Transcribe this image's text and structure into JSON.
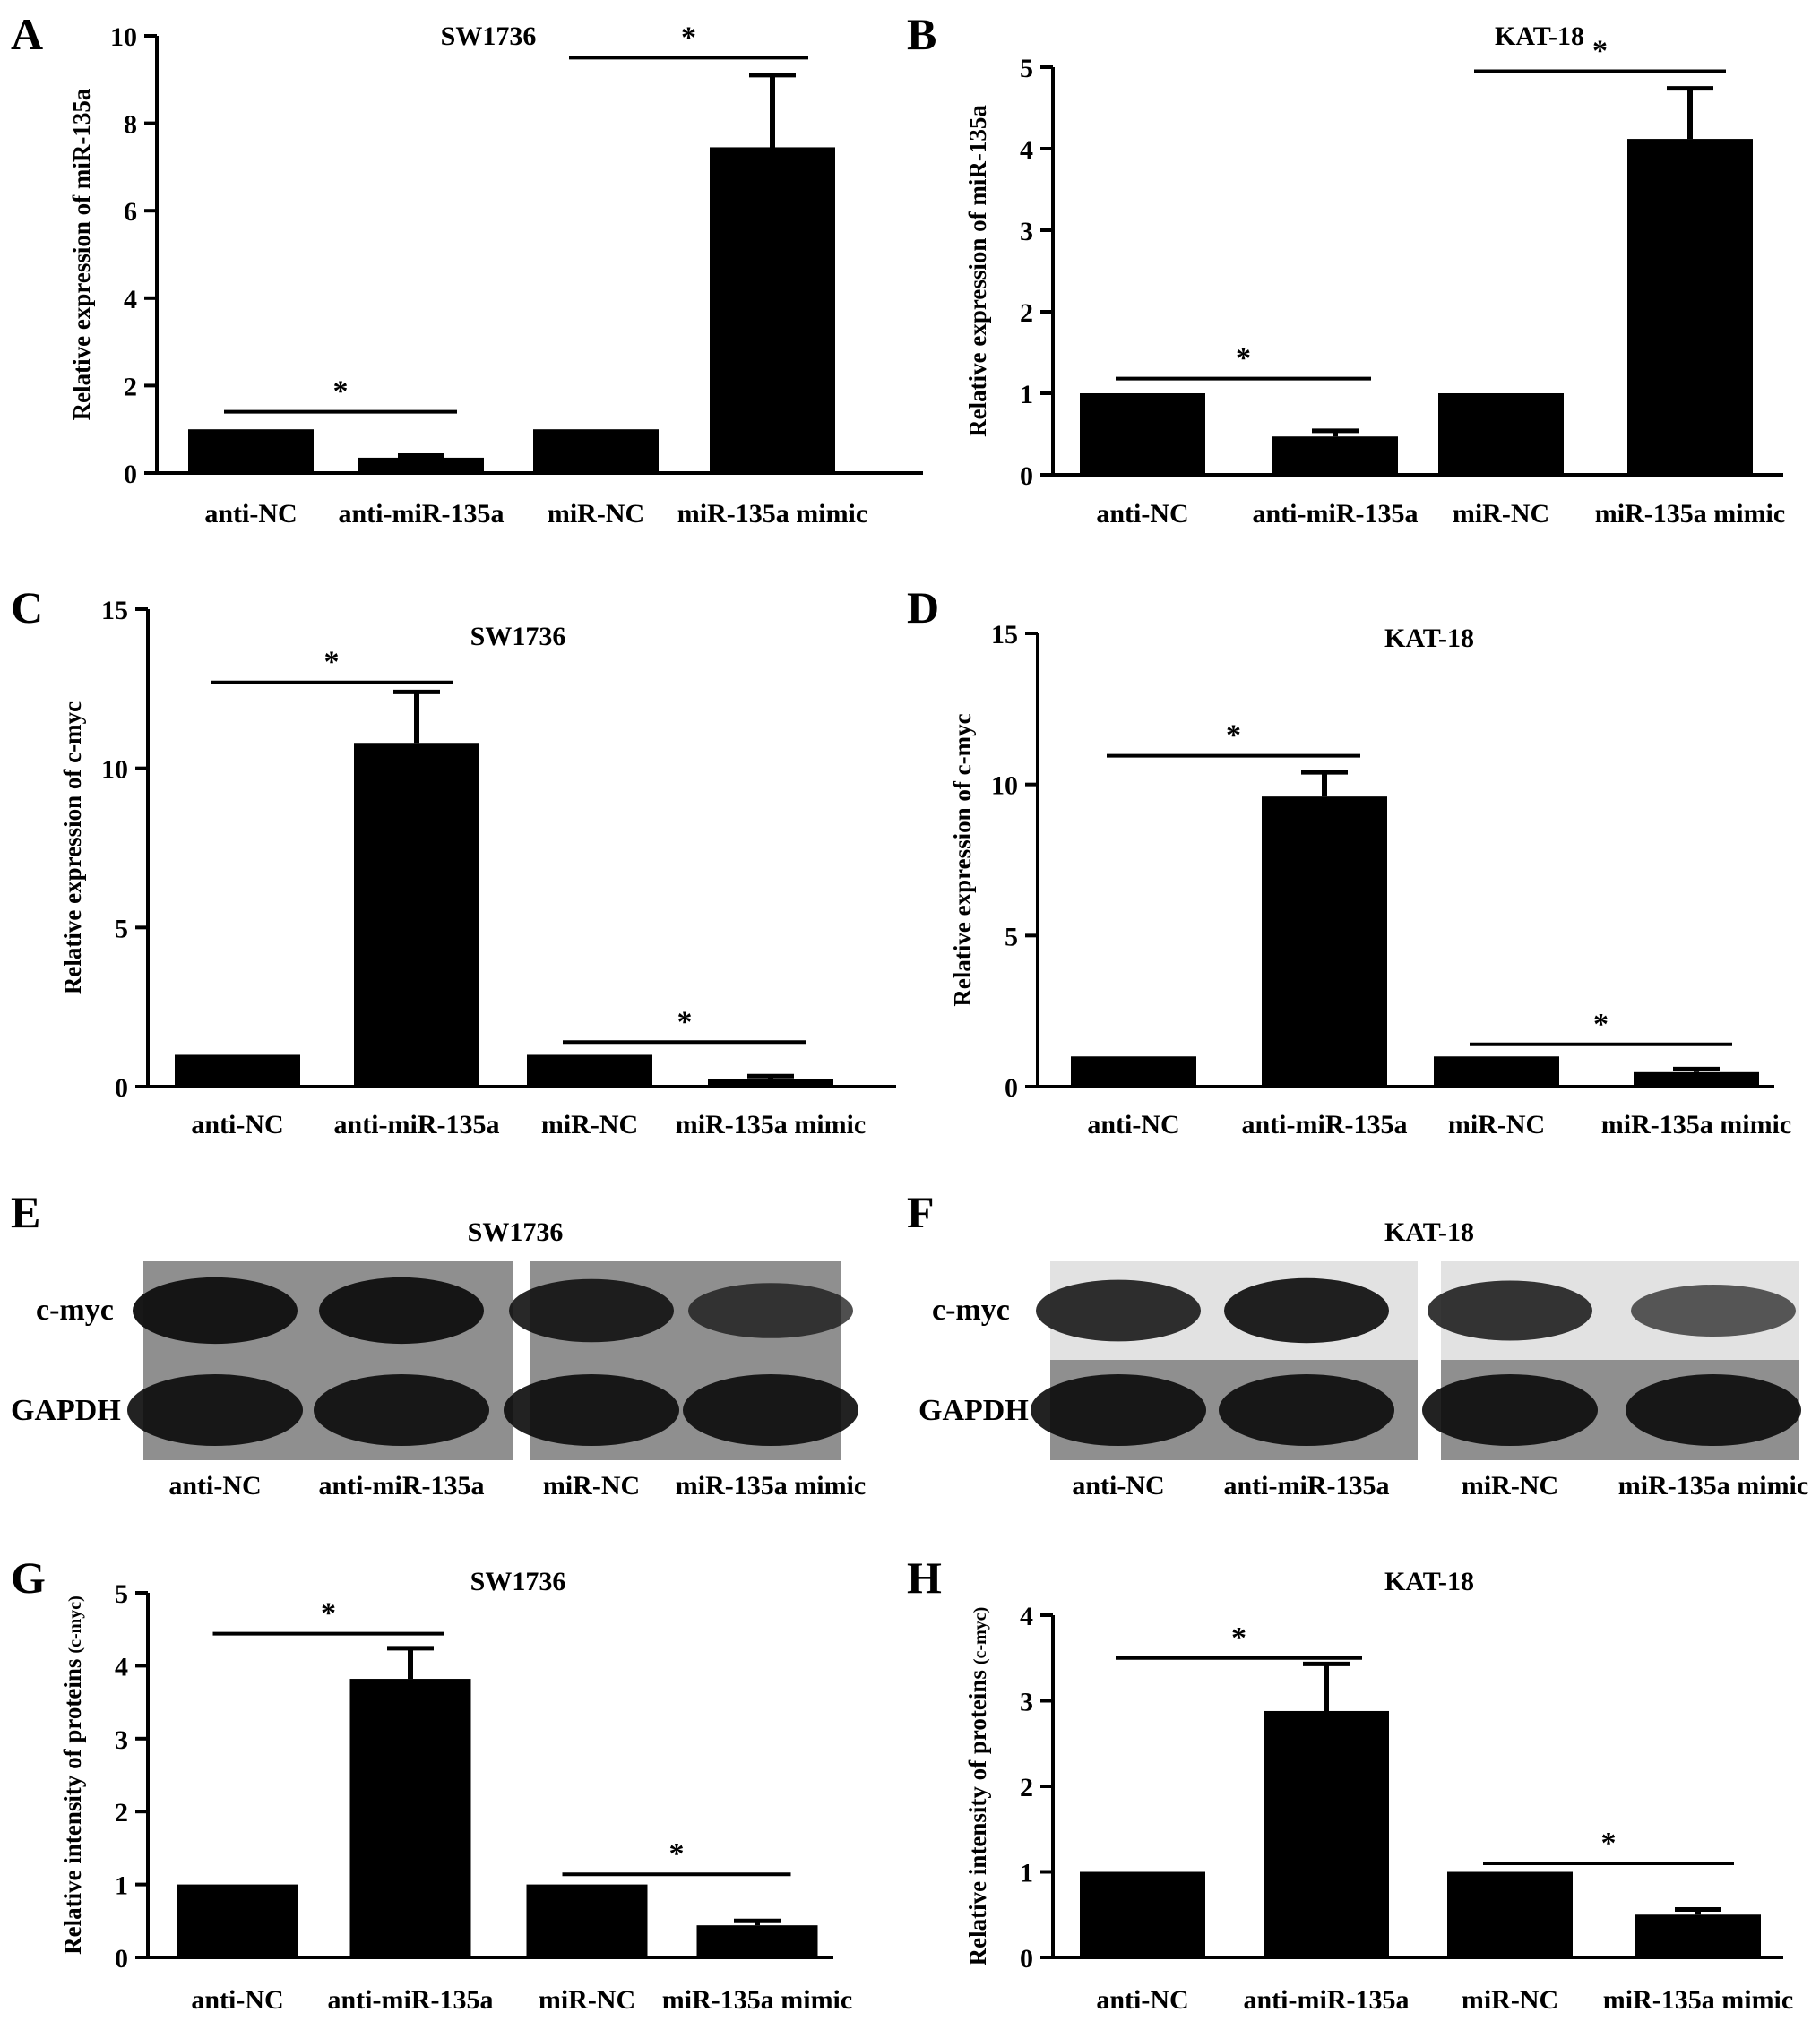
{
  "chart_data": [
    {
      "panel": "A",
      "type": "bar",
      "title": "SW1736",
      "ylabel": "Relative  expression of miR-135a",
      "xlabel": "",
      "categories": [
        "anti-NC",
        "anti-miR-135a",
        "miR-NC",
        "miR-135a mimic"
      ],
      "values": [
        1.0,
        0.35,
        1.0,
        7.45
      ],
      "errors": [
        0,
        0.05,
        0,
        1.65
      ],
      "ylim": [
        0,
        10
      ],
      "yticks": [
        "0",
        "2",
        "4",
        "6",
        "8",
        "10"
      ],
      "significance": [
        {
          "from": 0,
          "to": 1,
          "y": 1.4,
          "label": "*"
        },
        {
          "from": 2,
          "to": 3,
          "y": 9.5,
          "label": "*"
        }
      ]
    },
    {
      "panel": "B",
      "type": "bar",
      "title": "KAT-18",
      "ylabel": "Relative  expression of miR-135a",
      "xlabel": "",
      "categories": [
        "anti-NC",
        "anti-miR-135a",
        "miR-NC",
        "miR-135a mimic"
      ],
      "values": [
        1.0,
        0.47,
        1.0,
        4.12
      ],
      "errors": [
        0,
        0.07,
        0,
        0.62
      ],
      "ylim": [
        0,
        5
      ],
      "yticks": [
        "0",
        "1",
        "2",
        "3",
        "4",
        "5"
      ],
      "significance": [
        {
          "from": 0,
          "to": 1,
          "y": 1.18,
          "label": "*"
        },
        {
          "from": 2,
          "to": 3,
          "y": 4.95,
          "label": "*"
        }
      ]
    },
    {
      "panel": "C",
      "type": "bar",
      "title": "SW1736",
      "ylabel": "Relative  expression of c-myc",
      "xlabel": "",
      "categories": [
        "anti-NC",
        "anti-miR-135a",
        "miR-NC",
        "miR-135a mimic"
      ],
      "values": [
        1.0,
        10.8,
        1.0,
        0.25
      ],
      "errors": [
        0,
        1.6,
        0,
        0.08
      ],
      "ylim": [
        0,
        15
      ],
      "yticks": [
        "0",
        "5",
        "10",
        "15"
      ],
      "significance": [
        {
          "from": 0,
          "to": 1,
          "y": 12.7,
          "label": "*"
        },
        {
          "from": 2,
          "to": 3,
          "y": 1.4,
          "label": "*"
        }
      ]
    },
    {
      "panel": "D",
      "type": "bar",
      "title": "KAT-18",
      "ylabel": "Relative  expression of c-myc",
      "xlabel": "",
      "categories": [
        "anti-NC",
        "anti-miR-135a",
        "miR-NC",
        "miR-135a mimic"
      ],
      "values": [
        1.0,
        9.6,
        1.0,
        0.48
      ],
      "errors": [
        0,
        0.8,
        0,
        0.1
      ],
      "ylim": [
        0,
        15
      ],
      "yticks": [
        "0",
        "5",
        "10",
        "15"
      ],
      "significance": [
        {
          "from": 0,
          "to": 1,
          "y": 10.95,
          "label": "*"
        },
        {
          "from": 2,
          "to": 3,
          "y": 1.4,
          "label": "*"
        }
      ]
    },
    {
      "panel": "G",
      "type": "bar",
      "title": "SW1736",
      "ylabel": "Relative intensity of proteins",
      "ylabel_sub": "(c-myc)",
      "xlabel": "",
      "categories": [
        "anti-NC",
        "anti-miR-135a",
        "miR-NC",
        "miR-135a mimic"
      ],
      "values": [
        1.0,
        3.82,
        1.0,
        0.44
      ],
      "errors": [
        0,
        0.42,
        0,
        0.06
      ],
      "ylim": [
        0,
        5
      ],
      "yticks": [
        "0",
        "1",
        "2",
        "3",
        "4",
        "5"
      ],
      "significance": [
        {
          "from": 0,
          "to": 1,
          "y": 4.44,
          "label": "*"
        },
        {
          "from": 2,
          "to": 3,
          "y": 1.14,
          "label": "*"
        }
      ]
    },
    {
      "panel": "H",
      "type": "bar",
      "title": "KAT-18",
      "ylabel": "Relative intensity of proteins",
      "ylabel_sub": "(c-myc)",
      "xlabel": "",
      "categories": [
        "anti-NC",
        "anti-miR-135a",
        "miR-NC",
        "miR-135a mimic"
      ],
      "values": [
        1.0,
        2.88,
        1.0,
        0.5
      ],
      "errors": [
        0,
        0.55,
        0,
        0.06
      ],
      "ylim": [
        0,
        4
      ],
      "yticks": [
        "0",
        "1",
        "2",
        "3",
        "4"
      ],
      "significance": [
        {
          "from": 0,
          "to": 1,
          "y": 3.5,
          "label": "*"
        },
        {
          "from": 2,
          "to": 3,
          "y": 1.1,
          "label": "*"
        }
      ]
    }
  ],
  "blots": [
    {
      "panel": "E",
      "title": "SW1736",
      "row_labels": [
        "c-myc",
        "GAPDH"
      ],
      "lane_labels": [
        "anti-NC",
        "anti-miR-135a",
        "miR-NC",
        "miR-135a mimic"
      ],
      "cmyc_band_intensity": [
        0.95,
        0.95,
        0.85,
        0.6
      ],
      "gapdh_band_intensity": [
        1.0,
        1.0,
        1.0,
        1.0
      ]
    },
    {
      "panel": "F",
      "title": "KAT-18",
      "row_labels": [
        "c-myc",
        "GAPDH"
      ],
      "lane_labels": [
        "anti-NC",
        "anti-miR-135a",
        "miR-NC",
        "miR-135a mimic"
      ],
      "cmyc_band_intensity": [
        0.8,
        0.9,
        0.75,
        0.5
      ],
      "gapdh_band_intensity": [
        1.0,
        1.0,
        1.0,
        1.0
      ]
    }
  ],
  "colors": {
    "bar": "#000000",
    "axis": "#000000",
    "blot_bg": "#8f8f8f",
    "blot_bg_light": "#e2e2e2"
  }
}
